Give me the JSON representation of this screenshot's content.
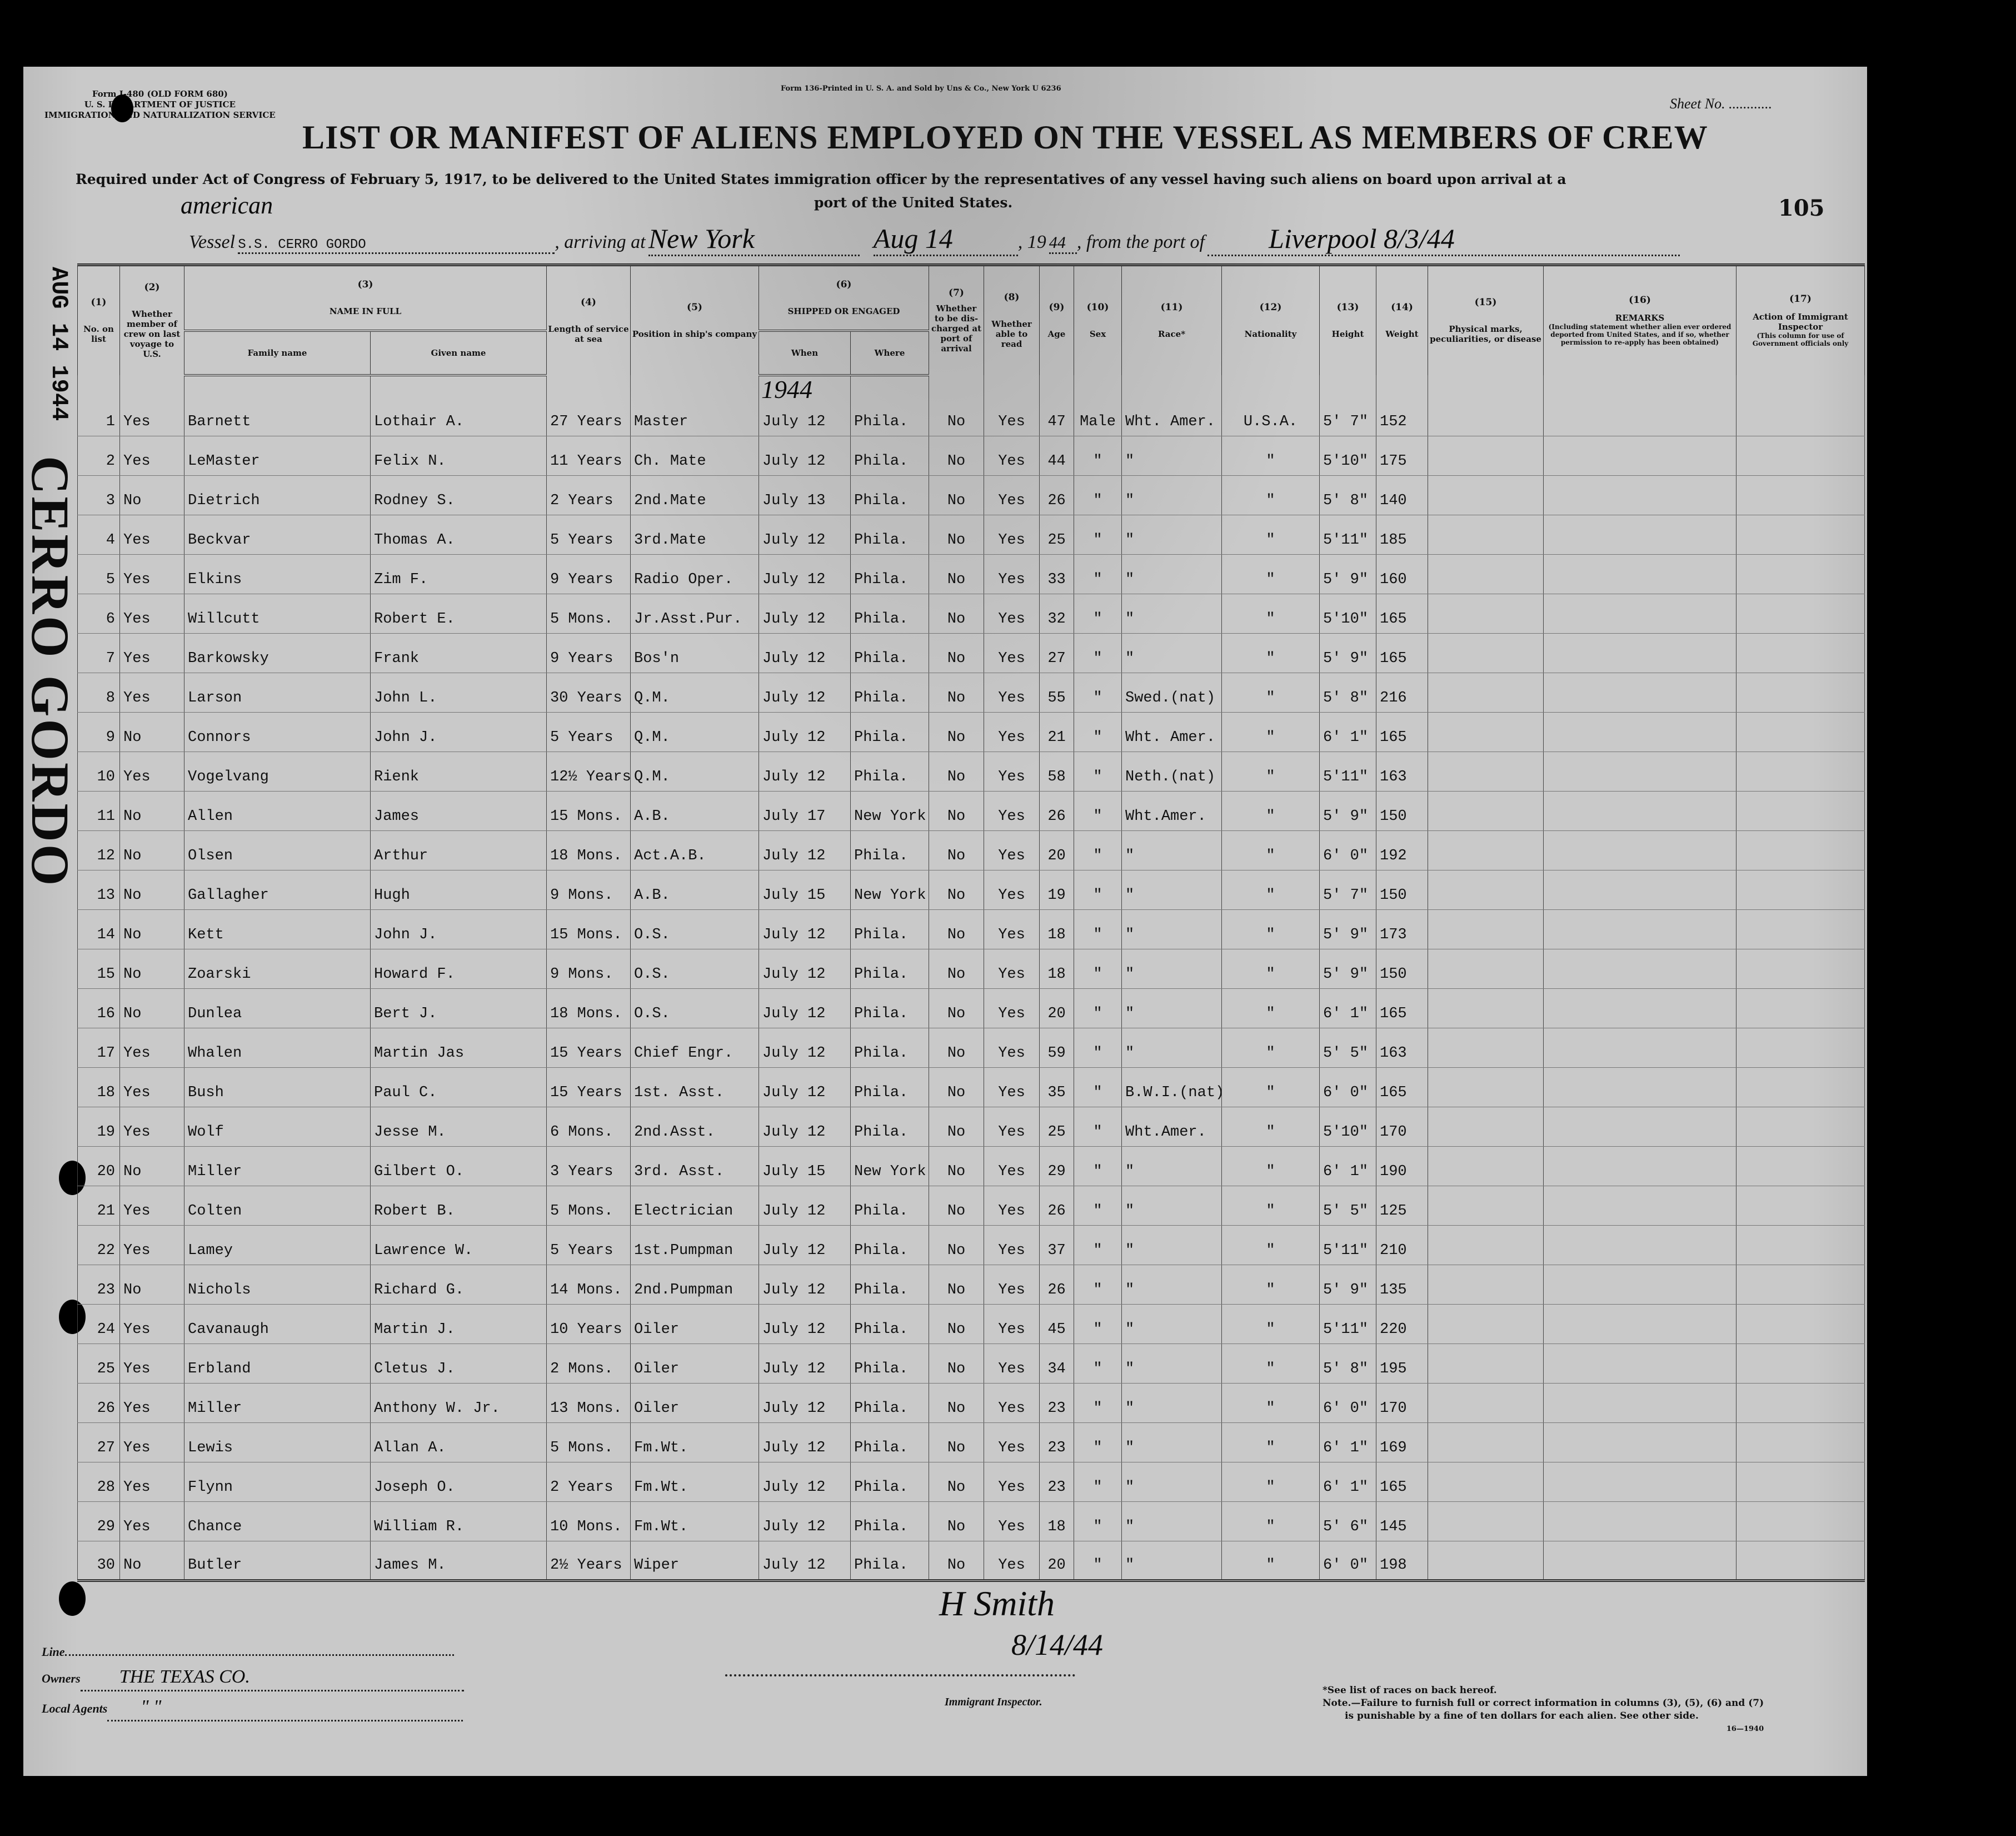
{
  "form": {
    "form_id_lines": [
      "Form I-480 (OLD FORM 680)",
      "U. S. DEPARTMENT OF JUSTICE",
      "IMMIGRATION AND NATURALIZATION SERVICE"
    ],
    "printer_line": "Form 136-Printed in U. S. A. and Sold by Uns & Co., New York   U 6236",
    "sheet_no_label": "Sheet No. ............",
    "title": "LIST OR MANIFEST OF ALIENS EMPLOYED ON THE VESSEL AS MEMBERS OF CREW",
    "subtitle_line1": "Required under Act of Congress of February 5, 1917, to be delivered to the United States immigration officer by the representatives of any vessel having such aliens on board upon arrival at a",
    "subtitle_line2": "port of the United States.",
    "page_number": "105"
  },
  "vessel": {
    "nationality_handwritten": "american",
    "vessel_label": "Vessel",
    "vessel_name": "S.S. CERRO GORDO",
    "arriving_label": ", arriving at",
    "arriving_at": "New York",
    "date": "Aug 14",
    "year_prefix": ", 19",
    "year": "44",
    "from_label": ", from the port of",
    "from_port": "Liverpool 8/3/44"
  },
  "margin_stamp": {
    "date": "AUG 14 1944",
    "vessel": "CERRO GORDO"
  },
  "annotation_year": "1944",
  "columns": {
    "nums": [
      "(1)",
      "(2)",
      "(3)",
      "(4)",
      "(5)",
      "(6)",
      "(7)",
      "(8)",
      "(9)",
      "(10)",
      "(11)",
      "(12)",
      "(13)",
      "(14)",
      "(15)",
      "(16)",
      "(17)"
    ],
    "no_on_list": "No. on list",
    "member_last_voyage": "Whether member of crew on last voyage to U.S.",
    "name_in_full": "NAME IN FULL",
    "family_name": "Family name",
    "given_name": "Given name",
    "length_service": "Length of service at sea",
    "position": "Position in ship's company",
    "shipped_engaged": "SHIPPED OR ENGAGED",
    "when": "When",
    "where": "Where",
    "discharged": "Whether to be dis-charged at port of arrival",
    "able_read": "Whether able to read",
    "age": "Age",
    "sex": "Sex",
    "race": "Race*",
    "nationality": "Nationality",
    "height": "Height",
    "weight": "Weight",
    "physical": "Physical marks, peculiarities, or disease",
    "remarks": "REMARKS",
    "remarks_note": "(Including statement whether alien ever ordered deported from United States, and if so, whether permission to re-apply has been obtained)",
    "action": "Action of Immigrant Inspector",
    "action_note": "(This column for use of Government officials only"
  },
  "rows": [
    [
      "1",
      "Yes",
      "Barnett",
      "Lothair A.",
      "27 Years",
      "Master",
      "July 12",
      "Phila.",
      "No",
      "Yes",
      "47",
      "Male",
      "Wht. Amer.",
      "U.S.A.",
      "5' 7\"",
      "152"
    ],
    [
      "2",
      "Yes",
      "LeMaster",
      "Felix N.",
      "11 Years",
      "Ch. Mate",
      "July 12",
      "Phila.",
      "No",
      "Yes",
      "44",
      "\"",
      "\"",
      "\"",
      "5'10\"",
      "175"
    ],
    [
      "3",
      "No",
      "Dietrich",
      "Rodney S.",
      "2 Years",
      "2nd.Mate",
      "July 13",
      "Phila.",
      "No",
      "Yes",
      "26",
      "\"",
      "\"",
      "\"",
      "5' 8\"",
      "140"
    ],
    [
      "4",
      "Yes",
      "Beckvar",
      "Thomas A.",
      "5 Years",
      "3rd.Mate",
      "July 12",
      "Phila.",
      "No",
      "Yes",
      "25",
      "\"",
      "\"",
      "\"",
      "5'11\"",
      "185"
    ],
    [
      "5",
      "Yes",
      "Elkins",
      "Zim F.",
      "9 Years",
      "Radio Oper.",
      "July 12",
      "Phila.",
      "No",
      "Yes",
      "33",
      "\"",
      "\"",
      "\"",
      "5' 9\"",
      "160"
    ],
    [
      "6",
      "Yes",
      "Willcutt",
      "Robert E.",
      "5 Mons.",
      "Jr.Asst.Pur.",
      "July 12",
      "Phila.",
      "No",
      "Yes",
      "32",
      "\"",
      "\"",
      "\"",
      "5'10\"",
      "165"
    ],
    [
      "7",
      "Yes",
      "Barkowsky",
      "Frank",
      "9 Years",
      "Bos'n",
      "July 12",
      "Phila.",
      "No",
      "Yes",
      "27",
      "\"",
      "\"",
      "\"",
      "5' 9\"",
      "165"
    ],
    [
      "8",
      "Yes",
      "Larson",
      "John L.",
      "30 Years",
      "Q.M.",
      "July 12",
      "Phila.",
      "No",
      "Yes",
      "55",
      "\"",
      "Swed.(nat)",
      "\"",
      "5' 8\"",
      "216"
    ],
    [
      "9",
      "No",
      "Connors",
      "John J.",
      "5 Years",
      "Q.M.",
      "July 12",
      "Phila.",
      "No",
      "Yes",
      "21",
      "\"",
      "Wht. Amer.",
      "\"",
      "6' 1\"",
      "165"
    ],
    [
      "10",
      "Yes",
      "Vogelvang",
      "Rienk",
      "12½ Years",
      "Q.M.",
      "July 12",
      "Phila.",
      "No",
      "Yes",
      "58",
      "\"",
      "Neth.(nat)",
      "\"",
      "5'11\"",
      "163"
    ],
    [
      "11",
      "No",
      "Allen",
      "James",
      "15 Mons.",
      "A.B.",
      "July 17",
      "New York",
      "No",
      "Yes",
      "26",
      "\"",
      "Wht.Amer.",
      "\"",
      "5' 9\"",
      "150"
    ],
    [
      "12",
      "No",
      "Olsen",
      "Arthur",
      "18 Mons.",
      "Act.A.B.",
      "July 12",
      "Phila.",
      "No",
      "Yes",
      "20",
      "\"",
      "\"",
      "\"",
      "6' 0\"",
      "192"
    ],
    [
      "13",
      "No",
      "Gallagher",
      "Hugh",
      "9 Mons.",
      "A.B.",
      "July 15",
      "New York",
      "No",
      "Yes",
      "19",
      "\"",
      "\"",
      "\"",
      "5' 7\"",
      "150"
    ],
    [
      "14",
      "No",
      "Kett",
      "John J.",
      "15 Mons.",
      "O.S.",
      "July 12",
      "Phila.",
      "No",
      "Yes",
      "18",
      "\"",
      "\"",
      "\"",
      "5' 9\"",
      "173"
    ],
    [
      "15",
      "No",
      "Zoarski",
      "Howard F.",
      "9 Mons.",
      "O.S.",
      "July 12",
      "Phila.",
      "No",
      "Yes",
      "18",
      "\"",
      "\"",
      "\"",
      "5' 9\"",
      "150"
    ],
    [
      "16",
      "No",
      "Dunlea",
      "Bert J.",
      "18 Mons.",
      "O.S.",
      "July 12",
      "Phila.",
      "No",
      "Yes",
      "20",
      "\"",
      "\"",
      "\"",
      "6' 1\"",
      "165"
    ],
    [
      "17",
      "Yes",
      "Whalen",
      "Martin Jas",
      "15 Years",
      "Chief Engr.",
      "July 12",
      "Phila.",
      "No",
      "Yes",
      "59",
      "\"",
      "\"",
      "\"",
      "5' 5\"",
      "163"
    ],
    [
      "18",
      "Yes",
      "Bush",
      "Paul C.",
      "15 Years",
      "1st. Asst.",
      "July 12",
      "Phila.",
      "No",
      "Yes",
      "35",
      "\"",
      "B.W.I.(nat)",
      "\"",
      "6' 0\"",
      "165"
    ],
    [
      "19",
      "Yes",
      "Wolf",
      "Jesse M.",
      "6 Mons.",
      "2nd.Asst.",
      "July 12",
      "Phila.",
      "No",
      "Yes",
      "25",
      "\"",
      "Wht.Amer.",
      "\"",
      "5'10\"",
      "170"
    ],
    [
      "20",
      "No",
      "Miller",
      "Gilbert O.",
      "3 Years",
      "3rd. Asst.",
      "July 15",
      "New York",
      "No",
      "Yes",
      "29",
      "\"",
      "\"",
      "\"",
      "6' 1\"",
      "190"
    ],
    [
      "21",
      "Yes",
      "Colten",
      "Robert B.",
      "5 Mons.",
      "Electrician",
      "July 12",
      "Phila.",
      "No",
      "Yes",
      "26",
      "\"",
      "\"",
      "\"",
      "5' 5\"",
      "125"
    ],
    [
      "22",
      "Yes",
      "Lamey",
      "Lawrence W.",
      "5 Years",
      "1st.Pumpman",
      "July 12",
      "Phila.",
      "No",
      "Yes",
      "37",
      "\"",
      "\"",
      "\"",
      "5'11\"",
      "210"
    ],
    [
      "23",
      "No",
      "Nichols",
      "Richard G.",
      "14 Mons.",
      "2nd.Pumpman",
      "July 12",
      "Phila.",
      "No",
      "Yes",
      "26",
      "\"",
      "\"",
      "\"",
      "5' 9\"",
      "135"
    ],
    [
      "24",
      "Yes",
      "Cavanaugh",
      "Martin J.",
      "10 Years",
      "Oiler",
      "July 12",
      "Phila.",
      "No",
      "Yes",
      "45",
      "\"",
      "\"",
      "\"",
      "5'11\"",
      "220"
    ],
    [
      "25",
      "Yes",
      "Erbland",
      "Cletus J.",
      "2 Mons.",
      "Oiler",
      "July 12",
      "Phila.",
      "No",
      "Yes",
      "34",
      "\"",
      "\"",
      "\"",
      "5' 8\"",
      "195"
    ],
    [
      "26",
      "Yes",
      "Miller",
      "Anthony W. Jr.",
      "13 Mons.",
      "Oiler",
      "July 12",
      "Phila.",
      "No",
      "Yes",
      "23",
      "\"",
      "\"",
      "\"",
      "6' 0\"",
      "170"
    ],
    [
      "27",
      "Yes",
      "Lewis",
      "Allan A.",
      "5 Mons.",
      "Fm.Wt.",
      "July 12",
      "Phila.",
      "No",
      "Yes",
      "23",
      "\"",
      "\"",
      "\"",
      "6' 1\"",
      "169"
    ],
    [
      "28",
      "Yes",
      "Flynn",
      "Joseph O.",
      "2 Years",
      "Fm.Wt.",
      "July 12",
      "Phila.",
      "No",
      "Yes",
      "23",
      "\"",
      "\"",
      "\"",
      "6' 1\"",
      "165"
    ],
    [
      "29",
      "Yes",
      "Chance",
      "William R.",
      "10 Mons.",
      "Fm.Wt.",
      "July 12",
      "Phila.",
      "No",
      "Yes",
      "18",
      "\"",
      "\"",
      "\"",
      "5' 6\"",
      "145"
    ],
    [
      "30",
      "No",
      "Butler",
      "James M.",
      "2½ Years",
      "Wiper",
      "July 12",
      "Phila.",
      "No",
      "Yes",
      "20",
      "\"",
      "\"",
      "\"",
      "6' 0\"",
      "198"
    ]
  ],
  "signature": {
    "name": "H Smith",
    "date": "8/14/44"
  },
  "footer": {
    "line_label": "Line",
    "owners_label": "Owners",
    "owners_value": "THE TEXAS CO.",
    "agents_label": "Local Agents",
    "agents_value": "\"   \"",
    "inspector_label": "Immigrant Inspector.",
    "race_note": "*See list of races on back hereof.",
    "note": "Note.—Failure to furnish full or correct information in columns (3), (5), (6) and (7)",
    "note2": "is punishable by a fine of ten dollars for each alien.   See other side.",
    "code": "16—1940"
  }
}
